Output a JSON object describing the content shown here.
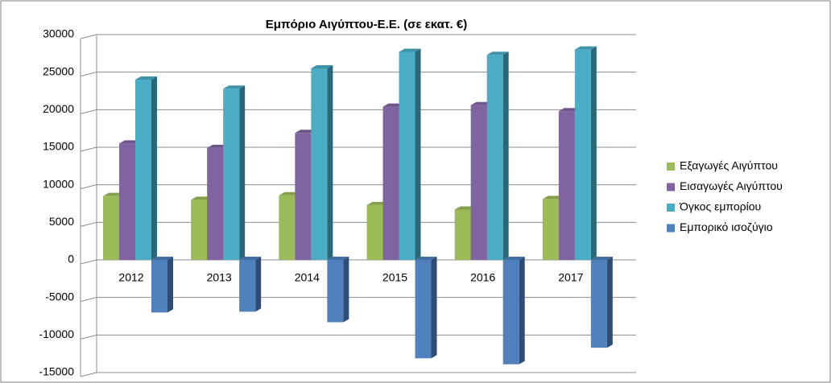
{
  "chart_data": {
    "type": "bar",
    "title": "Εμπόριο Αιγύπτου-Ε.Ε. (σε εκατ. €)",
    "categories": [
      "2012",
      "2013",
      "2014",
      "2015",
      "2016",
      "2017"
    ],
    "series": [
      {
        "name": "Εξαγωγές Αιγύπτου",
        "color": "#9bbb59",
        "values": [
          8500,
          8000,
          8600,
          7300,
          6700,
          8100
        ]
      },
      {
        "name": "Εισαγωγές Αιγύπτου",
        "color": "#8064a2",
        "values": [
          15500,
          14900,
          16900,
          20400,
          20600,
          19800
        ]
      },
      {
        "name": "Όγκος εμπορίου",
        "color": "#4bacc6",
        "values": [
          24000,
          22800,
          25500,
          27700,
          27300,
          28000
        ]
      },
      {
        "name": "Εμπορικό ισοζύγιο",
        "color": "#4f81bd",
        "values": [
          -7000,
          -6900,
          -8300,
          -13100,
          -13900,
          -11700
        ]
      }
    ],
    "ylim": [
      -15000,
      30000
    ],
    "yticks": [
      -15000,
      -10000,
      -5000,
      0,
      5000,
      10000,
      15000,
      20000,
      25000,
      30000
    ],
    "grid": true,
    "legend": "right"
  }
}
